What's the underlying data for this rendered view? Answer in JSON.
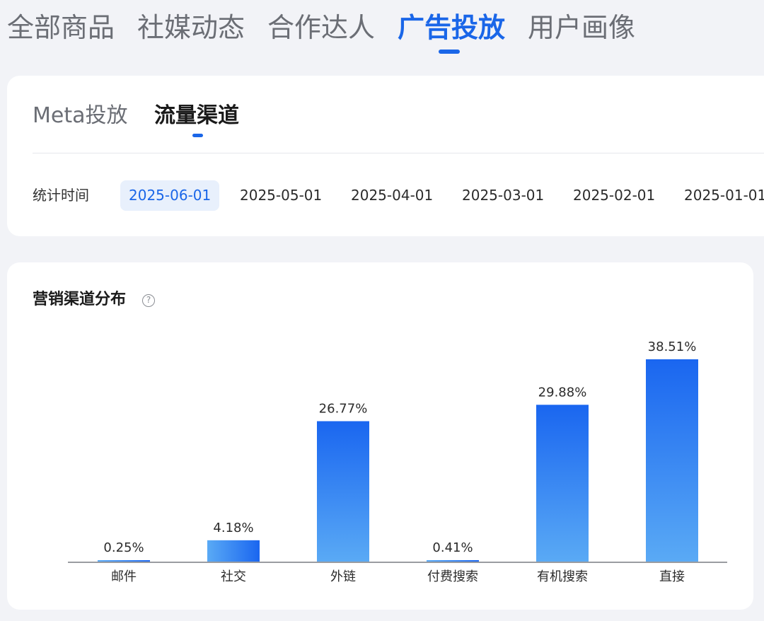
{
  "top_tabs": [
    {
      "label": "全部商品",
      "active": false
    },
    {
      "label": "社媒动态",
      "active": false
    },
    {
      "label": "合作达人",
      "active": false
    },
    {
      "label": "广告投放",
      "active": true
    },
    {
      "label": "用户画像",
      "active": false
    }
  ],
  "sub_tabs": [
    {
      "label": "Meta投放",
      "active": false
    },
    {
      "label": "流量渠道",
      "active": true
    }
  ],
  "filter": {
    "label": "统计时间",
    "dates": [
      "2025-06-01",
      "2025-05-01",
      "2025-04-01",
      "2025-03-01",
      "2025-02-01",
      "2025-01-01"
    ],
    "selected": "2025-06-01"
  },
  "chart": {
    "title": "营销渠道分布",
    "help_icon": "help-circle-icon"
  },
  "chart_data": {
    "type": "bar",
    "title": "营销渠道分布",
    "categories": [
      "邮件",
      "社交",
      "外链",
      "付费搜索",
      "有机搜索",
      "直接"
    ],
    "values": [
      0.25,
      4.18,
      26.77,
      0.41,
      29.88,
      38.51
    ],
    "value_labels": [
      "0.25%",
      "4.18%",
      "26.77%",
      "0.41%",
      "29.88%",
      "38.51%"
    ],
    "unit": "%",
    "ylim": [
      0,
      38.51
    ],
    "grid": false,
    "legend": "none",
    "colors": {
      "bar_top": "#1a66f0",
      "bar_bottom": "#5aaaf5",
      "axis": "#9a9ca1"
    }
  },
  "theme": {
    "accent": "#1a66e8",
    "background": "#f2f3f7",
    "card": "#ffffff"
  }
}
